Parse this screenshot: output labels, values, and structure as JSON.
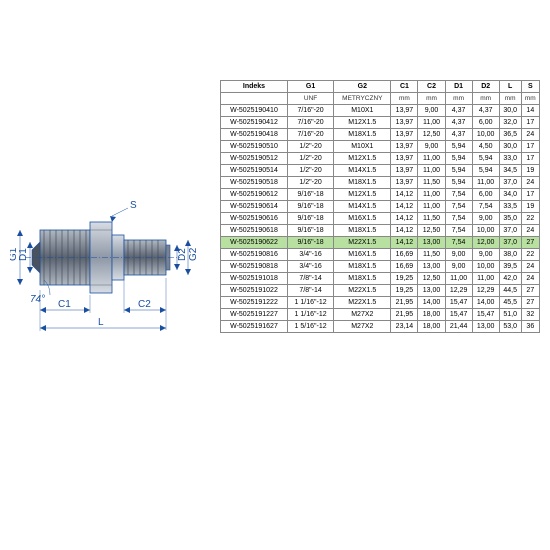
{
  "diagram": {
    "labels": {
      "g1": "G1",
      "g2": "G2",
      "d1": "D1",
      "d2": "D2",
      "c1": "C1",
      "c2": "C2",
      "l": "L",
      "s": "S",
      "angle": "74°"
    },
    "colors": {
      "outline": "#1a4fa0",
      "fill_light": "#c8d0da",
      "fill_mid": "#8e98a6",
      "fill_dark": "#5a6370",
      "dim_line": "#1a4fa0"
    }
  },
  "table": {
    "headers": [
      "Indeks",
      "G1",
      "G2",
      "C1",
      "C2",
      "D1",
      "D2",
      "L",
      "S"
    ],
    "units": [
      "",
      "UNF",
      "METRYCZNY",
      "mm",
      "mm",
      "mm",
      "mm",
      "mm",
      "mm"
    ],
    "highlight_index": 10,
    "rows": [
      [
        "W-5025190410",
        "7/16\"-20",
        "M10X1",
        "13,97",
        "9,00",
        "4,37",
        "4,37",
        "30,0",
        "14"
      ],
      [
        "W-5025190412",
        "7/16\"-20",
        "M12X1.5",
        "13,97",
        "11,00",
        "4,37",
        "6,00",
        "32,0",
        "17"
      ],
      [
        "W-5025190418",
        "7/16\"-20",
        "M18X1.5",
        "13,97",
        "12,50",
        "4,37",
        "10,00",
        "36,5",
        "24"
      ],
      [
        "W-5025190510",
        "1/2\"-20",
        "M10X1",
        "13,97",
        "9,00",
        "5,94",
        "4,50",
        "30,0",
        "17"
      ],
      [
        "W-5025190512",
        "1/2\"-20",
        "M12X1.5",
        "13,97",
        "11,00",
        "5,94",
        "5,94",
        "33,0",
        "17"
      ],
      [
        "W-5025190514",
        "1/2\"-20",
        "M14X1.5",
        "13,97",
        "11,00",
        "5,94",
        "5,94",
        "34,5",
        "19"
      ],
      [
        "W-5025190518",
        "1/2\"-20",
        "M18X1.5",
        "13,97",
        "11,50",
        "5,94",
        "11,00",
        "37,0",
        "24"
      ],
      [
        "W-5025190612",
        "9/16\"-18",
        "M12X1.5",
        "14,12",
        "11,00",
        "7,54",
        "6,00",
        "34,0",
        "17"
      ],
      [
        "W-5025190614",
        "9/16\"-18",
        "M14X1.5",
        "14,12",
        "11,00",
        "7,54",
        "7,54",
        "33,5",
        "19"
      ],
      [
        "W-5025190616",
        "9/16\"-18",
        "M16X1.5",
        "14,12",
        "11,50",
        "7,54",
        "9,00",
        "35,0",
        "22"
      ],
      [
        "W-5025190618",
        "9/16\"-18",
        "M18X1.5",
        "14,12",
        "12,50",
        "7,54",
        "10,00",
        "37,0",
        "24"
      ],
      [
        "W-5025190622",
        "9/16\"-18",
        "M22X1.5",
        "14,12",
        "13,00",
        "7,54",
        "12,00",
        "37,0",
        "27"
      ],
      [
        "W-5025190816",
        "3/4\"-16",
        "M16X1.5",
        "16,69",
        "11,50",
        "9,00",
        "9,00",
        "38,0",
        "22"
      ],
      [
        "W-5025190818",
        "3/4\"-16",
        "M18X1.5",
        "16,69",
        "13,00",
        "9,00",
        "10,00",
        "39,5",
        "24"
      ],
      [
        "W-5025191018",
        "7/8\"-14",
        "M18X1.5",
        "19,25",
        "12,50",
        "11,00",
        "11,00",
        "42,0",
        "24"
      ],
      [
        "W-5025191022",
        "7/8\"-14",
        "M22X1.5",
        "19,25",
        "13,00",
        "12,29",
        "12,29",
        "44,5",
        "27"
      ],
      [
        "W-5025191222",
        "1 1/16\"-12",
        "M22X1.5",
        "21,95",
        "14,00",
        "15,47",
        "14,00",
        "45,5",
        "27"
      ],
      [
        "W-5025191227",
        "1 1/16\"-12",
        "M27X2",
        "21,95",
        "18,00",
        "15,47",
        "15,47",
        "51,0",
        "32"
      ],
      [
        "W-5025191627",
        "1 5/16\"-12",
        "M27X2",
        "23,14",
        "18,00",
        "21,44",
        "13,00",
        "53,0",
        "36"
      ]
    ]
  }
}
